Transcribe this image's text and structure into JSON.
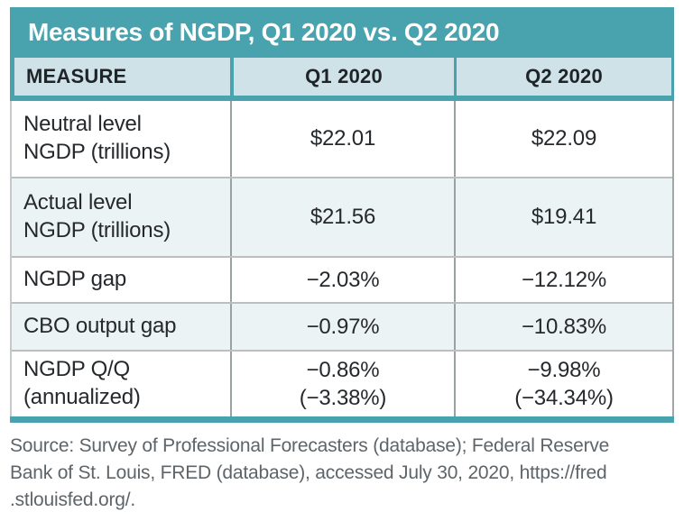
{
  "accent_color": "#49a3af",
  "header_bg": "#cfe2e7",
  "alt_row_bg": "#ecf3f4",
  "table": {
    "title": "Measures of NGDP, Q1 2020 vs. Q2 2020",
    "columns": [
      "MEASURE",
      "Q1 2020",
      "Q2 2020"
    ],
    "rows": [
      {
        "measure": "Neutral level\nNGDP (trillions)",
        "q1": "$22.01",
        "q2": "$22.09"
      },
      {
        "measure": "Actual level\nNGDP (trillions)",
        "q1": "$21.56",
        "q2": "$19.41"
      },
      {
        "measure": "NGDP gap",
        "q1": "−2.03%",
        "q2": "−12.12%"
      },
      {
        "measure": "CBO output gap",
        "q1": "−0.97%",
        "q2": "−10.83%"
      },
      {
        "measure": "NGDP Q/Q\n(annualized)",
        "q1": "−0.86%\n(−3.38%)",
        "q2": "−9.98%\n(−34.34%)"
      }
    ]
  },
  "source_note": "Source: Survey of Professional Forecasters (database); Federal Reserve\nBank of St. Louis, FRED (database), accessed July 30, 2020, https://fred\n.stlouisfed.org/.",
  "chart_data": {
    "type": "table",
    "title": "Measures of NGDP, Q1 2020 vs. Q2 2020",
    "columns": [
      "MEASURE",
      "Q1 2020",
      "Q2 2020"
    ],
    "rows": [
      [
        "Neutral level NGDP (trillions)",
        "$22.01",
        "$22.09"
      ],
      [
        "Actual level NGDP (trillions)",
        "$21.56",
        "$19.41"
      ],
      [
        "NGDP gap",
        "−2.03%",
        "−12.12%"
      ],
      [
        "CBO output gap",
        "−0.97%",
        "−10.83%"
      ],
      [
        "NGDP Q/Q (annualized)",
        "−0.86% (−3.38%)",
        "−9.98% (−34.34%)"
      ]
    ],
    "source": "Source: Survey of Professional Forecasters (database); Federal Reserve Bank of St. Louis, FRED (database), accessed July 30, 2020, https://fred.stlouisfed.org/."
  }
}
